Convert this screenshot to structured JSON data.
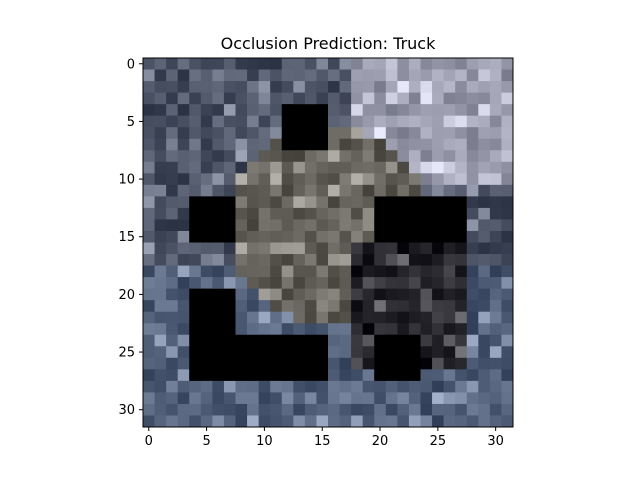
{
  "chart_data": {
    "type": "heatmap",
    "title": "Occlusion Prediction: Truck",
    "xlabel": "",
    "ylabel": "",
    "grid_size": [
      32,
      32
    ],
    "xlim": [
      -0.5,
      31.5
    ],
    "ylim": [
      31.5,
      -0.5
    ],
    "x_ticks": [
      "0",
      "5",
      "10",
      "15",
      "20",
      "25",
      "30"
    ],
    "y_ticks": [
      "0",
      "5",
      "10",
      "15",
      "20",
      "25",
      "30"
    ],
    "occlusion_color": "#000000",
    "occlusion_patches": [
      {
        "x": [
          12,
          15
        ],
        "y": [
          4,
          7
        ]
      },
      {
        "x": [
          4,
          7
        ],
        "y": [
          12,
          15
        ]
      },
      {
        "x": [
          20,
          27
        ],
        "y": [
          12,
          15
        ]
      },
      {
        "x": [
          4,
          7
        ],
        "y": [
          20,
          27
        ]
      },
      {
        "x": [
          8,
          15
        ],
        "y": [
          24,
          27
        ]
      },
      {
        "x": [
          20,
          23
        ],
        "y": [
          24,
          27
        ]
      }
    ]
  }
}
